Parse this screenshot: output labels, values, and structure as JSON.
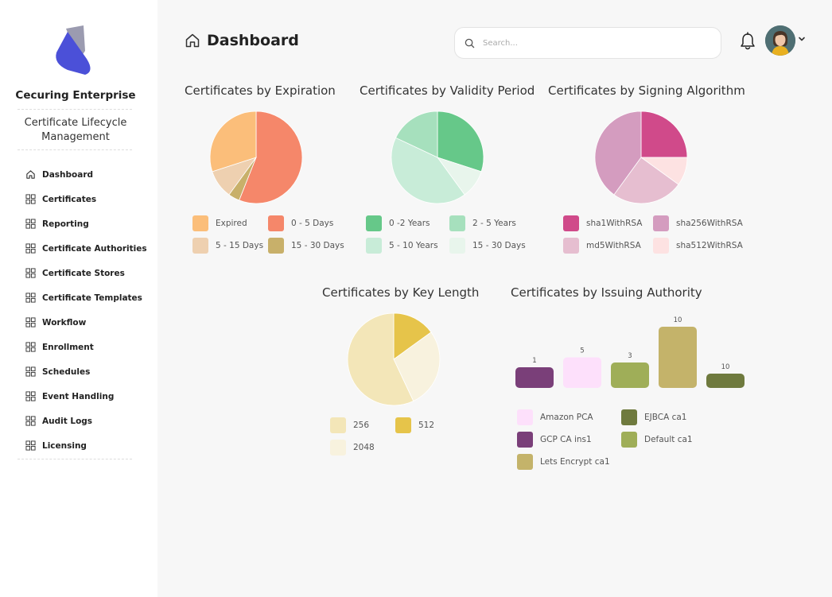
{
  "sidebar": {
    "org_name": "Cecuring Enterprise",
    "app_name": "Certificate Lifecycle Management",
    "items": [
      {
        "label": "Dashboard",
        "icon": "home-icon"
      },
      {
        "label": "Certificates",
        "icon": "grid-icon"
      },
      {
        "label": "Reporting",
        "icon": "grid-icon"
      },
      {
        "label": "Certificate Authorities",
        "icon": "grid-icon"
      },
      {
        "label": "Certificate Stores",
        "icon": "grid-icon"
      },
      {
        "label": "Certificate Templates",
        "icon": "grid-icon"
      },
      {
        "label": "Workflow",
        "icon": "grid-icon"
      },
      {
        "label": "Enrollment",
        "icon": "grid-icon"
      },
      {
        "label": "Schedules",
        "icon": "grid-icon"
      },
      {
        "label": "Event Handling",
        "icon": "grid-icon"
      },
      {
        "label": "Audit Logs",
        "icon": "grid-icon"
      },
      {
        "label": "Licensing",
        "icon": "grid-icon"
      }
    ]
  },
  "header": {
    "title": "Dashboard",
    "search_placeholder": "Search...",
    "icons": [
      "home-icon",
      "search-icon",
      "bell-icon",
      "avatar",
      "chevron-down-icon"
    ]
  },
  "colors": {
    "brand_primary": "#4b50d8",
    "brand_secondary": "#9b9bb0"
  },
  "charts": {
    "expiration": {
      "title": "Certificates by Expiration",
      "legend": [
        "Expired",
        "0 - 5 Days",
        "5 - 15 Days",
        "15 - 30 Days"
      ]
    },
    "validity": {
      "title": "Certificates by Validity Period",
      "legend": [
        "0 -2 Years",
        "2 - 5 Years",
        "5 - 10 Years",
        "15 - 30 Days"
      ]
    },
    "algorithm": {
      "title": "Certificates by Signing Algorithm",
      "legend": [
        "sha1WithRSA",
        "sha256WithRSA",
        "md5WithRSA",
        "sha512WithRSA"
      ]
    },
    "keylength": {
      "title": "Certificates by Key Length",
      "legend": [
        "256",
        "512",
        "2048"
      ]
    },
    "issuer": {
      "title": "Certificates by Issuing Authority",
      "legend": [
        "Amazon PCA",
        "EJBCA ca1",
        "GCP CA ins1",
        "Default ca1",
        "Lets Encrypt ca1"
      ]
    }
  },
  "chart_data": [
    {
      "type": "pie",
      "title": "Certificates by Expiration",
      "categories": [
        "0 - 5 Days",
        "15 - 30 Days",
        "5 - 15 Days",
        "Expired"
      ],
      "values": [
        56,
        4,
        10,
        30
      ],
      "colors": [
        "#f5876a",
        "#c8b06a",
        "#eed0b0",
        "#fbbe7a"
      ]
    },
    {
      "type": "pie",
      "title": "Certificates by Validity Period",
      "categories": [
        "0 -2 Years",
        "15 - 30 Days",
        "5 - 10 Years",
        "2 - 5 Years"
      ],
      "values": [
        30,
        10,
        42,
        18
      ],
      "colors": [
        "#66c889",
        "#e8f5ec",
        "#c8ecd8",
        "#a6e0bd"
      ]
    },
    {
      "type": "pie",
      "title": "Certificates by Signing Algorithm",
      "categories": [
        "sha1WithRSA",
        "sha512WithRSA",
        "md5WithRSA",
        "sha256WithRSA"
      ],
      "values": [
        25,
        10,
        25,
        40
      ],
      "colors": [
        "#d04a8a",
        "#fde2e2",
        "#e6bed0",
        "#d49cbf"
      ]
    },
    {
      "type": "pie",
      "title": "Certificates by Key Length",
      "categories": [
        "512",
        "2048",
        "256"
      ],
      "values": [
        15,
        28,
        57
      ],
      "colors": [
        "#e6c44a",
        "#f8f2de",
        "#f3e6b8"
      ]
    },
    {
      "type": "bar",
      "title": "Certificates by Issuing Authority",
      "categories": [
        "GCP CA ins1",
        "Amazon PCA",
        "Default ca1",
        "Lets Encrypt ca1",
        "EJBCA ca1"
      ],
      "values": [
        1,
        5,
        3,
        10,
        10
      ],
      "labels": [
        "1",
        "5",
        "3",
        "10",
        "10"
      ],
      "colors": [
        "#7a3f79",
        "#fde0fb",
        "#9fae58",
        "#c4b36a",
        "#6f7a3e"
      ]
    }
  ]
}
